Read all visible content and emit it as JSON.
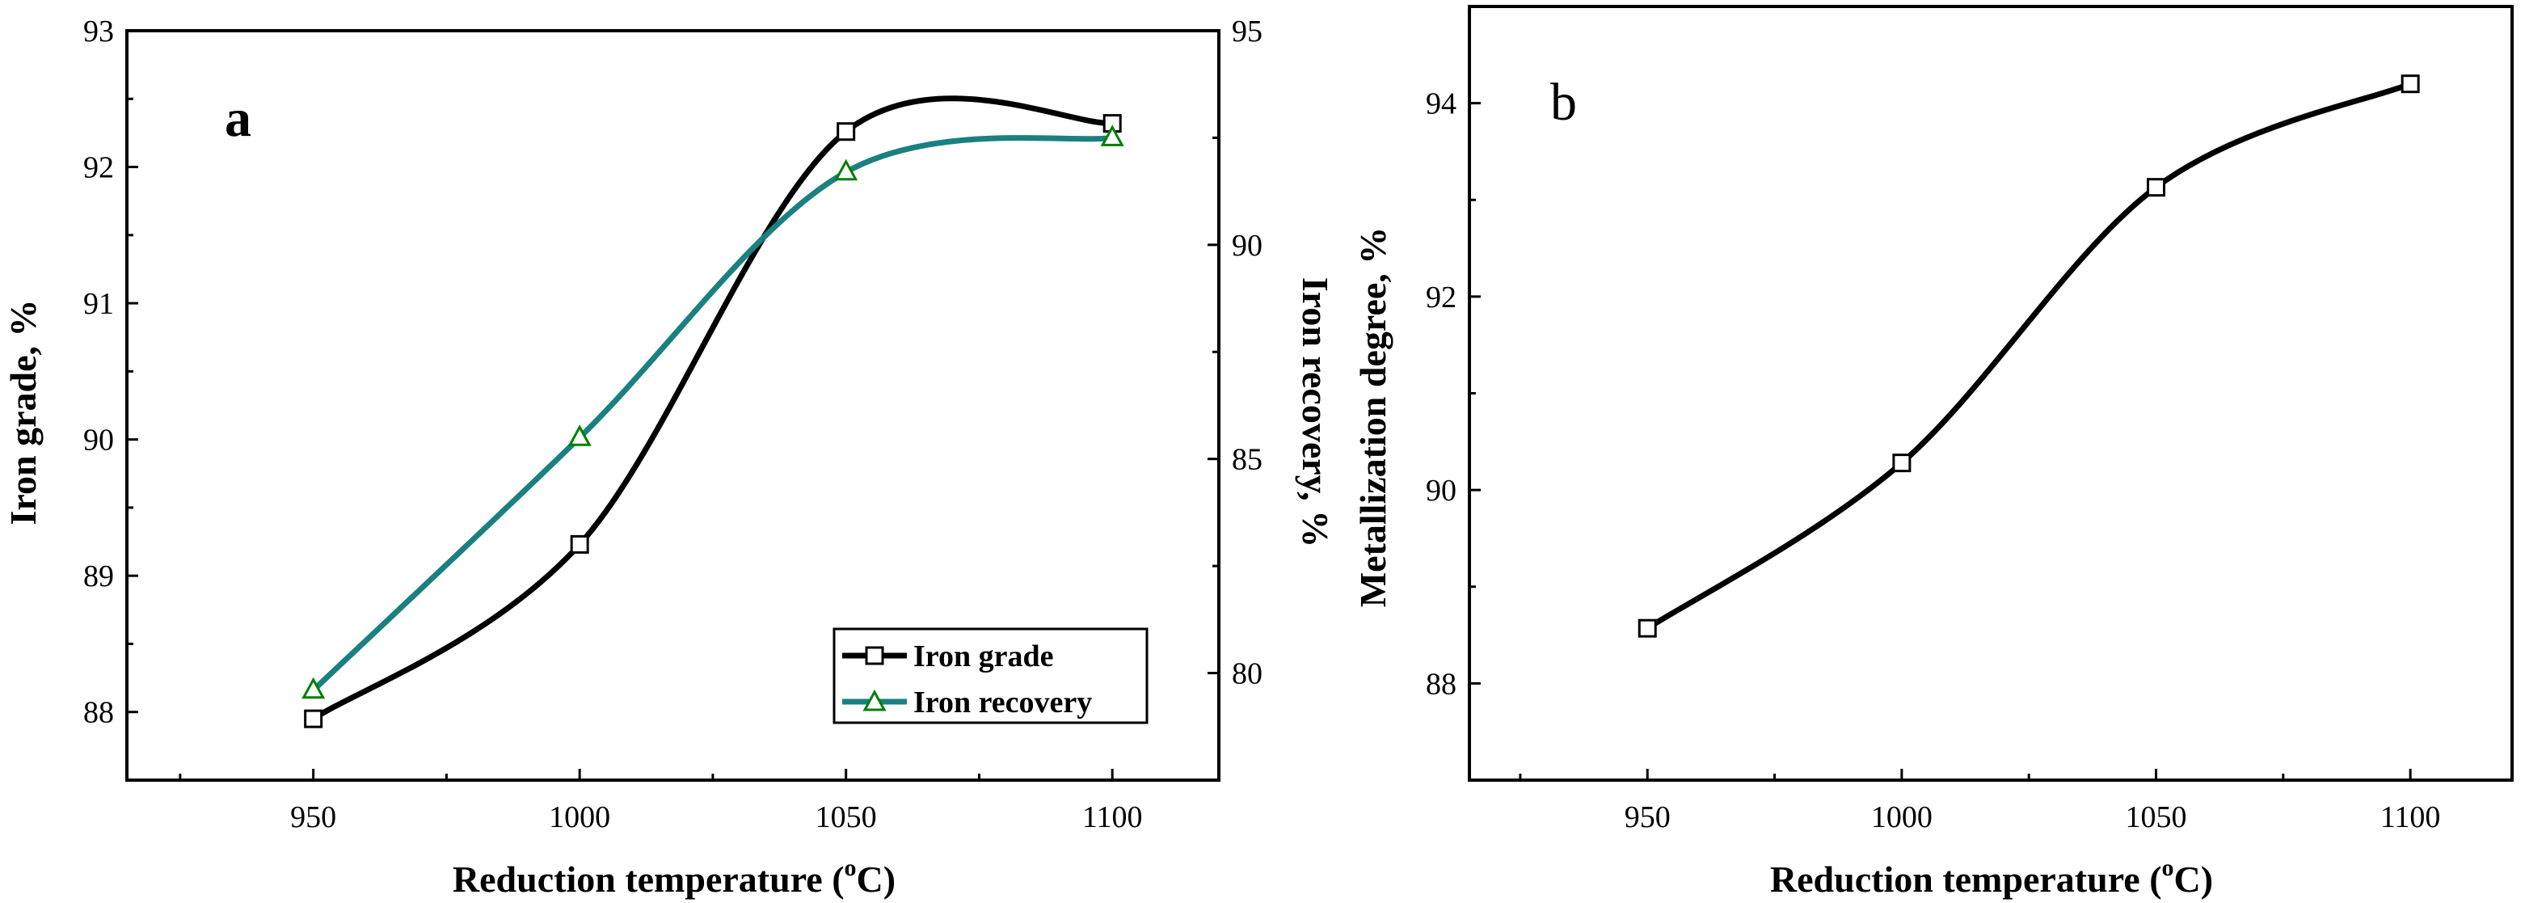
{
  "chart_data": [
    {
      "panel": "a",
      "type": "line",
      "panel_label": "a",
      "xlabel": "Reduction temperature (",
      "xlabel_sup": "o",
      "xlabel_end": "C)",
      "ylabel": "Iron grade, %",
      "y2label": "Iron recovery, %",
      "xlim": [
        915,
        1120
      ],
      "ylim": [
        87.5,
        93
      ],
      "y2lim": [
        77.5,
        95
      ],
      "xticks": [
        "950",
        "1000",
        "1050",
        "1100"
      ],
      "yticks": [
        "88",
        "89",
        "90",
        "91",
        "92",
        "93"
      ],
      "y2ticks": [
        "80",
        "85",
        "90",
        "95"
      ],
      "x": [
        950,
        1000,
        1050,
        1100
      ],
      "series": [
        {
          "name": "Iron grade",
          "axis": "left",
          "marker": "square",
          "color": "#000000",
          "values": [
            87.95,
            89.23,
            92.26,
            92.32
          ]
        },
        {
          "name": "Iron recovery",
          "axis": "right",
          "marker": "triangle",
          "color": "#1a8080",
          "marker_color": "#008000",
          "values": [
            79.6,
            85.5,
            91.7,
            92.5
          ]
        }
      ],
      "legend_position": "bottom-right"
    },
    {
      "panel": "b",
      "type": "line",
      "panel_label": "b",
      "xlabel": "Reduction temperature (",
      "xlabel_sup": "o",
      "xlabel_end": "C)",
      "ylabel": "Metallization degree, %",
      "xlim": [
        915,
        1120
      ],
      "ylim": [
        87,
        95
      ],
      "xticks": [
        "950",
        "1000",
        "1050",
        "1100"
      ],
      "yticks": [
        "88",
        "90",
        "92",
        "94"
      ],
      "x": [
        950,
        1000,
        1050,
        1100
      ],
      "series": [
        {
          "name": "Metallization degree",
          "marker": "square",
          "color": "#000000",
          "values": [
            88.57,
            90.28,
            93.13,
            94.2
          ]
        }
      ]
    }
  ]
}
